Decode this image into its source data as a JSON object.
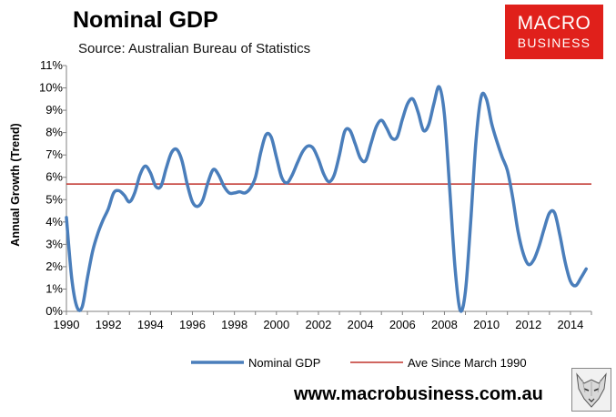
{
  "header": {
    "title": "Nominal GDP",
    "subtitle": "Source: Australian Bureau of Statistics"
  },
  "logo": {
    "line1": "MACRO",
    "line2": "BUSINESS"
  },
  "footer": {
    "website": "www.macrobusiness.com.au"
  },
  "icons": {
    "footer_logo": "wolf-logo-icon"
  },
  "colors": {
    "series_line": "#4a7ebb",
    "average_line": "#c0332c",
    "brand_red": "#e0201b"
  },
  "chart_data": {
    "type": "line",
    "title": "Nominal GDP",
    "subtitle": "Source: Australian Bureau of Statistics",
    "ylabel": "Annual Growth (Trend)",
    "xlim": [
      1990,
      2015
    ],
    "ylim": [
      0,
      11
    ],
    "x_ticks": [
      1990,
      1992,
      1994,
      1996,
      1998,
      2000,
      2002,
      2004,
      2006,
      2008,
      2010,
      2012,
      2014
    ],
    "x_tick_labels": [
      "1990",
      "1992",
      "1994",
      "1996",
      "1998",
      "2000",
      "2002",
      "2004",
      "2006",
      "2008",
      "2010",
      "2012",
      "2014"
    ],
    "y_ticks": [
      0,
      1,
      2,
      3,
      4,
      5,
      6,
      7,
      8,
      9,
      10,
      11
    ],
    "y_tick_labels": [
      "0%",
      "1%",
      "2%",
      "3%",
      "4%",
      "5%",
      "6%",
      "7%",
      "8%",
      "9%",
      "10%",
      "11%"
    ],
    "grid": false,
    "legend_position": "bottom",
    "series": [
      {
        "name": "Nominal GDP",
        "x": [
          1990,
          1990.25,
          1990.5,
          1990.75,
          1991,
          1991.25,
          1991.5,
          1991.75,
          1992,
          1992.25,
          1992.5,
          1992.75,
          1993,
          1993.25,
          1993.5,
          1993.75,
          1994,
          1994.25,
          1994.5,
          1994.75,
          1995,
          1995.25,
          1995.5,
          1995.75,
          1996,
          1996.25,
          1996.5,
          1996.75,
          1997,
          1997.25,
          1997.5,
          1997.75,
          1998,
          1998.25,
          1998.5,
          1998.75,
          1999,
          1999.25,
          1999.5,
          1999.75,
          2000,
          2000.25,
          2000.5,
          2000.75,
          2001,
          2001.25,
          2001.5,
          2001.75,
          2002,
          2002.25,
          2002.5,
          2002.75,
          2003,
          2003.25,
          2003.5,
          2003.75,
          2004,
          2004.25,
          2004.5,
          2004.75,
          2005,
          2005.25,
          2005.5,
          2005.75,
          2006,
          2006.25,
          2006.5,
          2006.75,
          2007,
          2007.25,
          2007.5,
          2007.75,
          2008,
          2008.25,
          2008.5,
          2008.75,
          2009,
          2009.25,
          2009.5,
          2009.75,
          2010,
          2010.25,
          2010.5,
          2010.75,
          2011,
          2011.25,
          2011.5,
          2011.75,
          2012,
          2012.25,
          2012.5,
          2012.75,
          2013,
          2013.25,
          2013.5,
          2013.75,
          2014,
          2014.25,
          2014.5,
          2014.75
        ],
        "values": [
          4.2,
          1.5,
          0.2,
          0.2,
          1.5,
          2.7,
          3.5,
          4.1,
          4.6,
          5.3,
          5.4,
          5.2,
          4.9,
          5.3,
          6.1,
          6.5,
          6.2,
          5.6,
          5.6,
          6.4,
          7.1,
          7.25,
          6.75,
          5.7,
          4.9,
          4.7,
          5.0,
          5.8,
          6.35,
          6.1,
          5.6,
          5.3,
          5.3,
          5.35,
          5.3,
          5.5,
          6.0,
          7.1,
          7.9,
          7.8,
          6.9,
          6.0,
          5.75,
          6.1,
          6.65,
          7.15,
          7.4,
          7.3,
          6.8,
          6.15,
          5.8,
          6.1,
          7.0,
          8.05,
          8.1,
          7.5,
          6.85,
          6.75,
          7.5,
          8.25,
          8.55,
          8.2,
          7.75,
          7.8,
          8.6,
          9.3,
          9.5,
          8.9,
          8.1,
          8.35,
          9.3,
          10.05,
          8.8,
          5.5,
          2.0,
          0.05,
          0.9,
          4.0,
          7.6,
          9.6,
          9.5,
          8.4,
          7.6,
          6.9,
          6.3,
          5.1,
          3.6,
          2.6,
          2.1,
          2.3,
          2.9,
          3.7,
          4.4,
          4.4,
          3.4,
          2.2,
          1.35,
          1.15,
          1.5,
          1.9
        ]
      },
      {
        "name": "Ave Since March 1990",
        "x": [
          1990,
          2015
        ],
        "values": [
          5.7,
          5.7
        ]
      }
    ]
  }
}
